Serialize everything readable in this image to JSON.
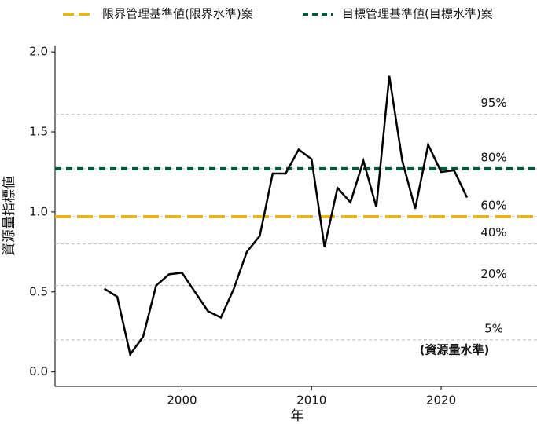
{
  "chart_data": {
    "type": "line",
    "x_label": "年",
    "y_label": "資源量指標値",
    "x": [
      1994,
      1995,
      1996,
      1997,
      1998,
      1999,
      2000,
      2001,
      2002,
      2003,
      2004,
      2005,
      2006,
      2007,
      2008,
      2009,
      2010,
      2011,
      2012,
      2013,
      2014,
      2015,
      2016,
      2017,
      2018,
      2019,
      2020,
      2021,
      2022
    ],
    "values": [
      0.52,
      0.47,
      0.11,
      0.22,
      0.54,
      0.61,
      0.62,
      0.5,
      0.38,
      0.34,
      0.52,
      0.75,
      0.85,
      1.24,
      1.24,
      1.39,
      1.33,
      0.78,
      1.15,
      1.06,
      1.32,
      1.03,
      1.85,
      1.32,
      1.02,
      1.42,
      1.25,
      1.26,
      1.09
    ],
    "color": "#000000",
    "xlim": [
      1990.2,
      2027.4
    ],
    "ylim": [
      -0.09,
      2.04
    ],
    "xticks": [
      2000,
      2010,
      2020
    ],
    "yticks": [
      {
        "value": 0,
        "label": "0.0"
      },
      0.5,
      {
        "value": 1,
        "label": "1.0"
      },
      1.5,
      {
        "value": 2,
        "label": "2.0"
      }
    ],
    "reference_lines": [
      {
        "name": "限界管理基準値(限界水準)案",
        "value": 0.97,
        "color": "#e8b41c"
      },
      {
        "name": "目標管理基準値(目標水準)案",
        "value": 1.27,
        "color": "#00583c"
      }
    ],
    "levels": [
      {
        "label": "95%",
        "value": 1.61
      },
      {
        "label": "80%",
        "value": 1.27
      },
      {
        "label": "60%",
        "value": 0.97
      },
      {
        "label": "40%",
        "value": 0.8
      },
      {
        "label": "20%",
        "value": 0.54
      },
      {
        "label": "5%",
        "value": 0.2
      }
    ],
    "annotation": "(資源量水準)"
  }
}
